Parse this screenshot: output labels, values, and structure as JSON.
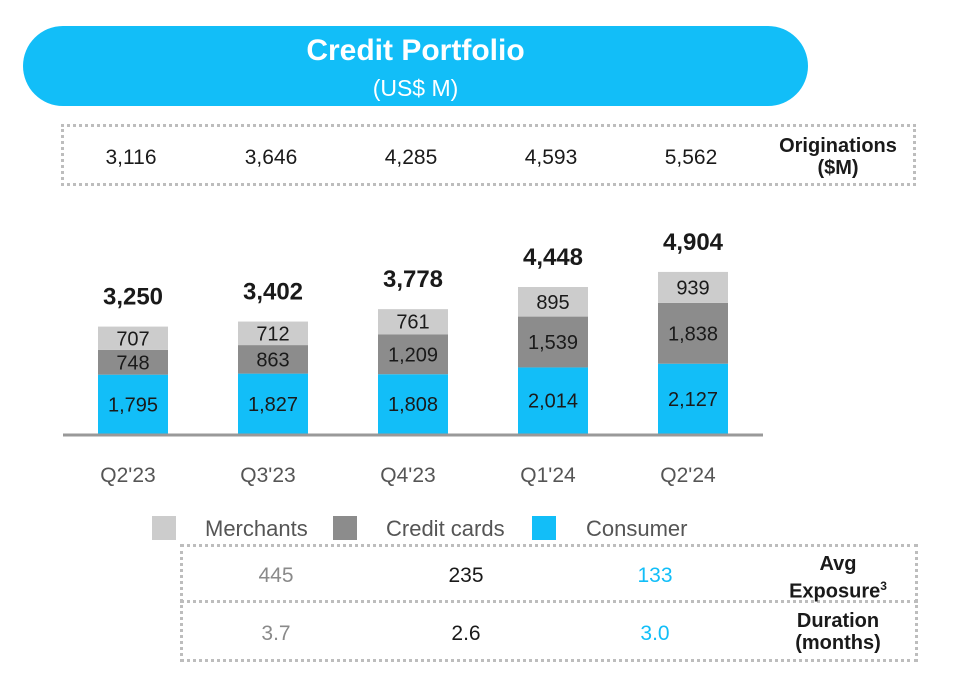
{
  "header": {
    "title": "Credit Portfolio",
    "subtitle": "(US$ M)"
  },
  "originations": {
    "label_line1": "Originations",
    "label_line2": "($M)",
    "values": [
      "3,116",
      "3,646",
      "4,285",
      "4,593",
      "5,562"
    ]
  },
  "chart_data": {
    "type": "bar",
    "stacked": true,
    "categories": [
      "Q2'23",
      "Q3'23",
      "Q4'23",
      "Q1'24",
      "Q2'24"
    ],
    "series": [
      {
        "name": "Consumer",
        "values": [
          1795,
          1827,
          1808,
          2014,
          2127
        ],
        "labels": [
          "1,795",
          "1,827",
          "1,808",
          "2,014",
          "2,127"
        ],
        "color": "#12bef8"
      },
      {
        "name": "Credit cards",
        "values": [
          748,
          863,
          1209,
          1539,
          1838
        ],
        "labels": [
          "748",
          "863",
          "1,209",
          "1,539",
          "1,838"
        ],
        "color": "#8c8c8c"
      },
      {
        "name": "Merchants",
        "values": [
          707,
          712,
          761,
          895,
          939
        ],
        "labels": [
          "707",
          "712",
          "761",
          "895",
          "939"
        ],
        "color": "#cccccc"
      }
    ],
    "totals": [
      "3,250",
      "3,402",
      "3,778",
      "4,448",
      "4,904"
    ],
    "total_values": [
      3250,
      3402,
      3778,
      4448,
      4904
    ],
    "legend": [
      "Merchants",
      "Credit cards",
      "Consumer"
    ],
    "legend_position": "bottom"
  },
  "exposure": {
    "label_line1": "Avg",
    "label_line2": "Exposure",
    "footnote": "3",
    "values": [
      "445",
      "235",
      "133"
    ]
  },
  "duration": {
    "label_line1": "Duration",
    "label_line2": "(months)",
    "values": [
      "3.7",
      "2.6",
      "3.0"
    ]
  },
  "colors": {
    "accent": "#12bef8",
    "merchants": "#cccccc",
    "credit_cards": "#8c8c8c",
    "consumer": "#12bef8",
    "axis": "#999999"
  }
}
